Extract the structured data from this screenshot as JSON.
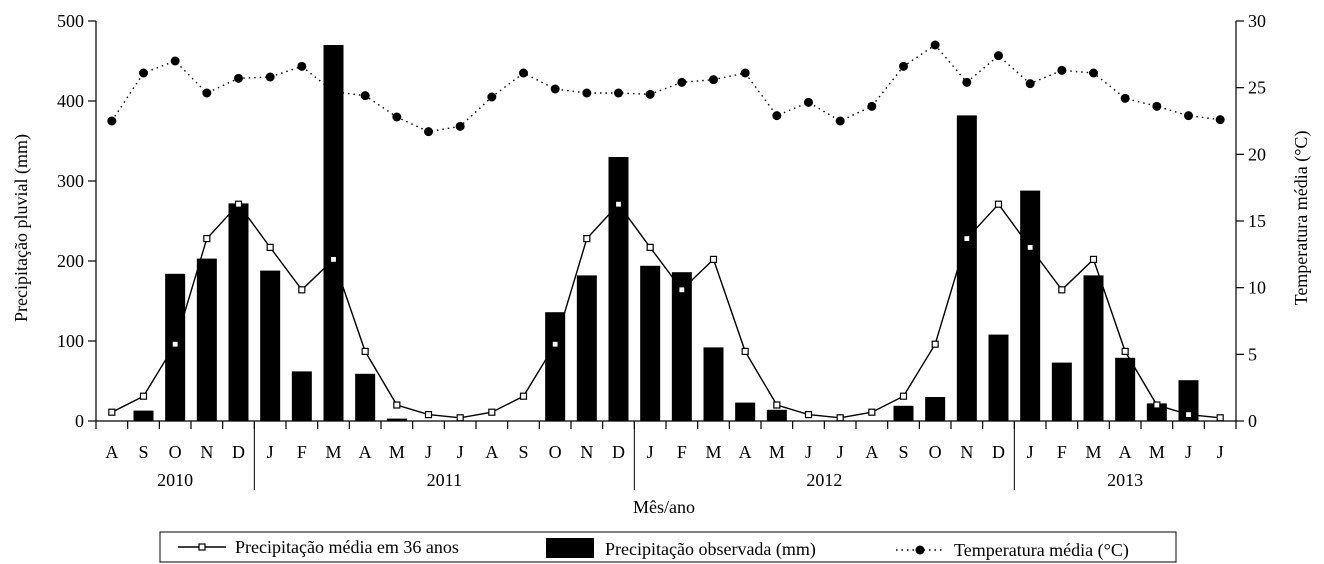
{
  "chart_data": {
    "type": "bar",
    "categories": [
      "A",
      "S",
      "O",
      "N",
      "D",
      "J",
      "F",
      "M",
      "A",
      "M",
      "J",
      "J",
      "A",
      "S",
      "O",
      "N",
      "D",
      "J",
      "F",
      "M",
      "A",
      "M",
      "J",
      "J",
      "A",
      "S",
      "O",
      "N",
      "D",
      "J",
      "F",
      "M",
      "A",
      "M",
      "J",
      "J"
    ],
    "years": [
      {
        "label": "2010",
        "start": 0,
        "end": 4
      },
      {
        "label": "2011",
        "start": 5,
        "end": 16
      },
      {
        "label": "2012",
        "start": 17,
        "end": 28
      },
      {
        "label": "2013",
        "start": 29,
        "end": 35
      }
    ],
    "series": [
      {
        "name": "Precipitação observada (mm)",
        "type": "bar",
        "axis": "left",
        "values": [
          0,
          13,
          184,
          203,
          272,
          188,
          62,
          470,
          59,
          3,
          0,
          0,
          0,
          0,
          136,
          182,
          330,
          194,
          186,
          92,
          23,
          14,
          0,
          0,
          0,
          19,
          30,
          382,
          108,
          288,
          73,
          182,
          79,
          22,
          51,
          0
        ]
      },
      {
        "name": "Precipitação média em 36 anos",
        "type": "line",
        "axis": "left",
        "values": [
          11,
          31,
          96,
          228,
          271,
          217,
          164,
          202,
          87,
          20,
          8,
          4,
          11,
          31,
          96,
          228,
          271,
          217,
          164,
          202,
          87,
          20,
          8,
          4,
          11,
          31,
          96,
          228,
          271,
          217,
          164,
          202,
          87,
          20,
          8,
          4
        ]
      },
      {
        "name": "Temperatura média (°C)",
        "type": "dotted-line",
        "axis": "right",
        "values": [
          22.5,
          26.1,
          27.0,
          24.6,
          25.7,
          25.8,
          26.6,
          24.7,
          24.4,
          22.8,
          21.7,
          22.1,
          24.3,
          26.1,
          24.9,
          24.6,
          24.6,
          24.5,
          25.4,
          25.6,
          26.1,
          22.9,
          23.9,
          22.5,
          23.6,
          26.6,
          28.2,
          25.4,
          27.4,
          25.3,
          26.3,
          26.1,
          24.2,
          23.6,
          22.9,
          22.6
        ]
      }
    ],
    "xlabel": "Mês/ano",
    "ylabel": "Precipitação pluvial (mm)",
    "y2label": "Temperatura média (°C)",
    "ylim": [
      0,
      500
    ],
    "y2lim": [
      0,
      30
    ],
    "yticks": [
      0,
      100,
      200,
      300,
      400,
      500
    ],
    "y2ticks": [
      0,
      5,
      10,
      15,
      20,
      25,
      30
    ],
    "grid": false,
    "legend_position": "bottom",
    "colors": {
      "bar": "#000000",
      "line": "#000000",
      "temperature": "#000000"
    }
  }
}
